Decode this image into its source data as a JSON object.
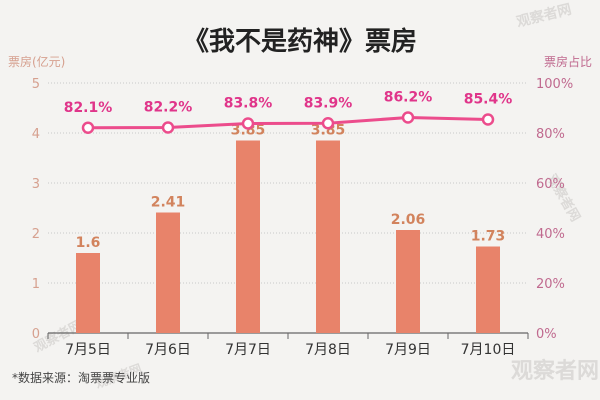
{
  "colors": {
    "bar": "#e8836a",
    "line": "#ec4c8c",
    "axis_left": "#d6a08f",
    "axis_right": "#c06a8f",
    "grid": "#c9c9c9",
    "background": "#f4f3f1"
  },
  "watermark": "观察者网",
  "chart_data": {
    "type": "bar",
    "title": "《我不是药神》票房",
    "categories": [
      "7月5日",
      "7月6日",
      "7月7日",
      "7月8日",
      "7月9日",
      "7月10日"
    ],
    "series": [
      {
        "name": "票房(亿元)",
        "type": "bar",
        "axis": "left",
        "values": [
          1.6,
          2.41,
          3.85,
          3.85,
          2.06,
          1.73
        ],
        "labels": [
          "1.6",
          "2.41",
          "3.85",
          "3.85",
          "2.06",
          "1.73"
        ]
      },
      {
        "name": "票房占比",
        "type": "line",
        "axis": "right",
        "values": [
          82.1,
          82.2,
          83.8,
          83.9,
          86.2,
          85.4
        ],
        "labels": [
          "82.1%",
          "82.2%",
          "83.8%",
          "83.9%",
          "86.2%",
          "85.4%"
        ]
      }
    ],
    "ylabel": "票房(亿元)",
    "ylabel_right": "票房占比",
    "ylim": [
      0,
      5
    ],
    "ylim_right": [
      0,
      100
    ],
    "yticks": [
      "0",
      "1",
      "2",
      "3",
      "4",
      "5"
    ],
    "yticks_right": [
      "0%",
      "20%",
      "40%",
      "60%",
      "80%",
      "100%"
    ],
    "grid": true,
    "source_note": "*数据来源：淘票票专业版"
  }
}
